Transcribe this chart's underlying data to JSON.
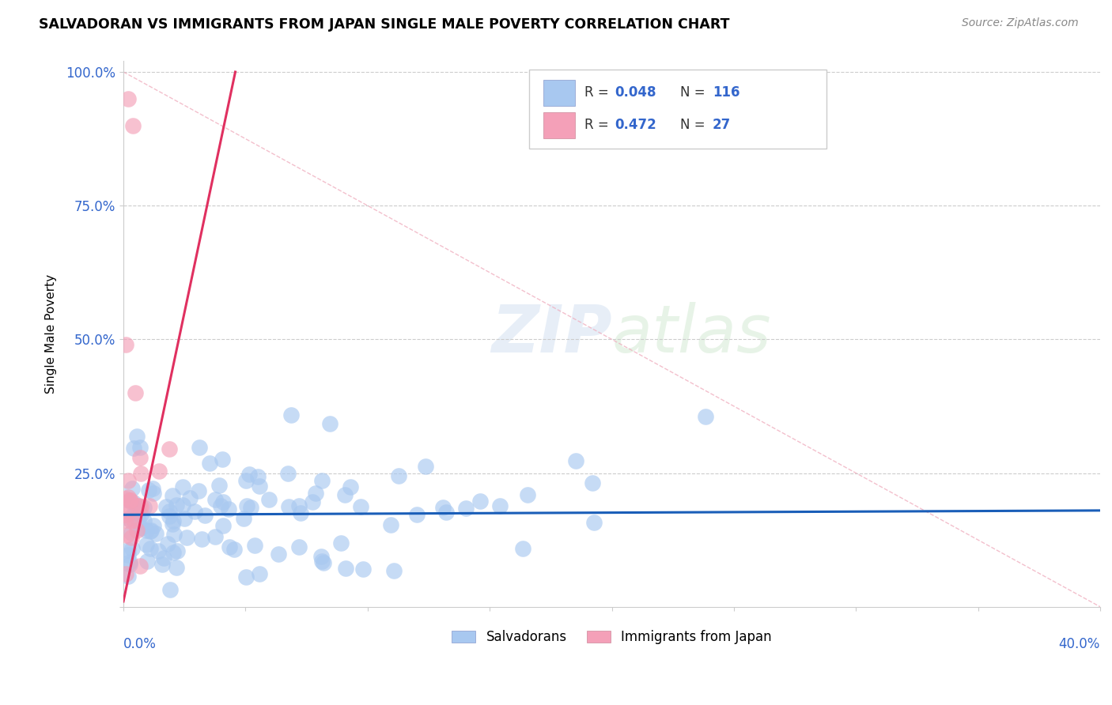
{
  "title": "SALVADORAN VS IMMIGRANTS FROM JAPAN SINGLE MALE POVERTY CORRELATION CHART",
  "source": "Source: ZipAtlas.com",
  "ylabel": "Single Male Poverty",
  "blue_color": "#a8c8f0",
  "pink_color": "#f4a0b8",
  "blue_line_color": "#1a5eb8",
  "pink_line_color": "#e03060",
  "ref_line_color": "#f0b0c0",
  "legend_r1": "R = 0.048",
  "legend_n1": "N = 116",
  "legend_r2": "R = 0.472",
  "legend_n2": "N = 27",
  "legend_label1": "Salvadorans",
  "legend_label2": "Immigrants from Japan",
  "xmin": 0.0,
  "xmax": 0.4,
  "ymin": 0.0,
  "ymax": 1.0,
  "ytick_positions": [
    0.0,
    0.25,
    0.5,
    0.75,
    1.0
  ],
  "ytick_labels": [
    "",
    "25.0%",
    "50.0%",
    "75.0%",
    "100.0%"
  ],
  "blue_seed": 42,
  "pink_seed": 99
}
